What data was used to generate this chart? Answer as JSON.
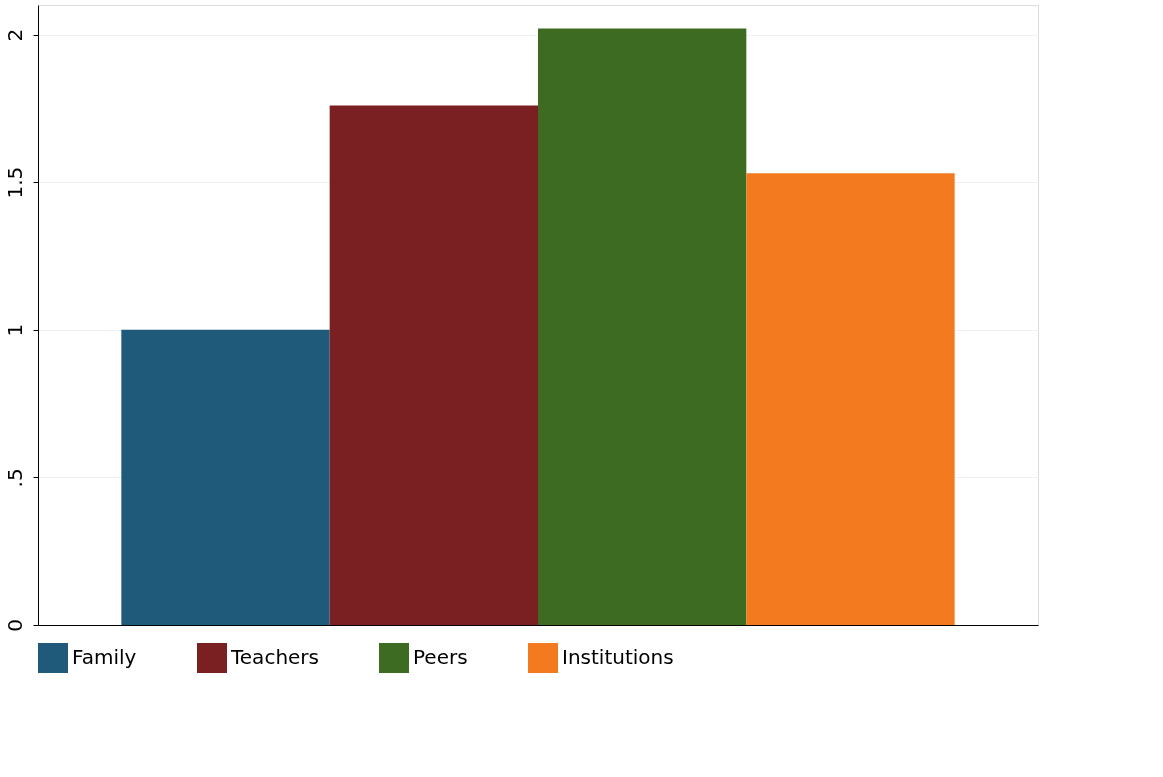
{
  "chart_data": {
    "type": "bar",
    "categories": [
      null
    ],
    "series": [
      {
        "name": "Family",
        "color": "#1f5a7a",
        "values": [
          1.0
        ]
      },
      {
        "name": "Teachers",
        "color": "#7a1f22",
        "values": [
          1.76
        ]
      },
      {
        "name": "Peers",
        "color": "#3e6b22",
        "values": [
          2.02
        ]
      },
      {
        "name": "Institutions",
        "color": "#f47a20",
        "values": [
          1.53
        ]
      }
    ],
    "ylim": [
      0,
      2.1
    ],
    "yticks": [
      0,
      {
        "value": 0.5,
        "label": ".5"
      },
      1,
      1.5,
      2
    ],
    "grid": "y",
    "legend": "bottom",
    "tick_labels": "y"
  }
}
